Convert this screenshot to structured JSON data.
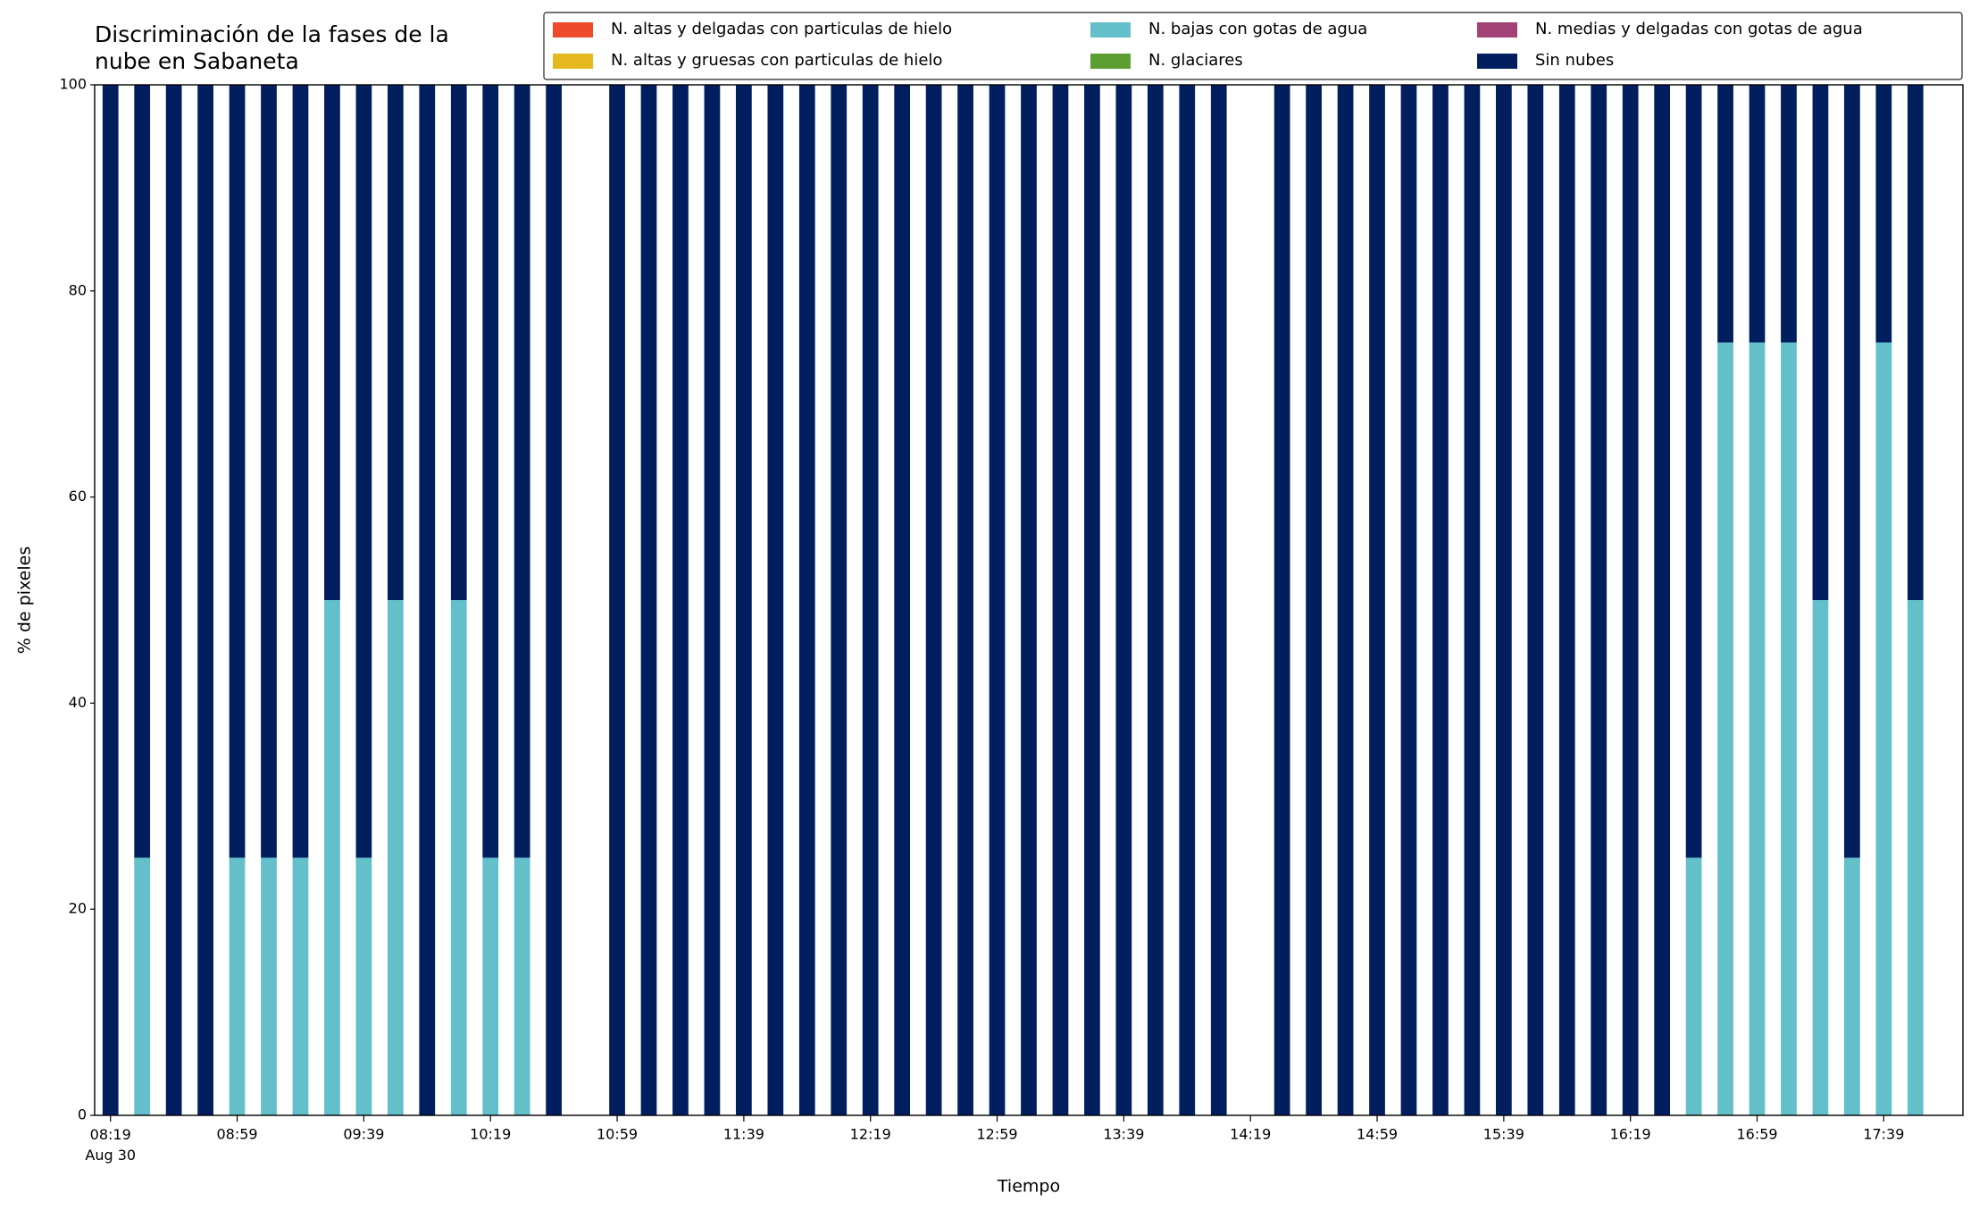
{
  "chart_data": {
    "type": "stacked_bar",
    "title": "Discriminación de la fases de la\nnube en Sabaneta",
    "xlabel": "Tiempo",
    "ylabel": "% de pixeles",
    "x": [
      "08:19",
      "08:29",
      "08:39",
      "08:49",
      "08:59",
      "09:09",
      "09:19",
      "09:29",
      "09:39",
      "09:49",
      "09:59",
      "10:09",
      "10:19",
      "10:29",
      "10:39",
      "10:59",
      "11:09",
      "11:19",
      "11:29",
      "11:39",
      "11:49",
      "11:59",
      "12:09",
      "12:19",
      "12:29",
      "12:39",
      "12:49",
      "12:59",
      "13:09",
      "13:19",
      "13:29",
      "13:39",
      "13:49",
      "13:59",
      "14:09",
      "14:29",
      "14:39",
      "14:49",
      "14:59",
      "15:09",
      "15:19",
      "15:29",
      "15:39",
      "15:49",
      "15:59",
      "16:09",
      "16:19",
      "16:29",
      "16:39",
      "16:49",
      "16:59",
      "17:09",
      "17:19",
      "17:29",
      "17:39",
      "17:49"
    ],
    "series": [
      {
        "name": "N. altas y delgadas con particulas de hielo",
        "color": "#ee4b2b",
        "values": [
          0,
          0,
          0,
          0,
          0,
          0,
          0,
          0,
          0,
          0,
          0,
          0,
          0,
          0,
          0,
          0,
          0,
          0,
          0,
          0,
          0,
          0,
          0,
          0,
          0,
          0,
          0,
          0,
          0,
          0,
          0,
          0,
          0,
          0,
          0,
          0,
          0,
          0,
          0,
          0,
          0,
          0,
          0,
          0,
          0,
          0,
          0,
          0,
          0,
          0,
          0,
          0,
          0,
          0,
          0,
          0
        ]
      },
      {
        "name": "N. altas y gruesas con particulas de hielo",
        "color": "#e5b81f",
        "values": [
          0,
          0,
          0,
          0,
          0,
          0,
          0,
          0,
          0,
          0,
          0,
          0,
          0,
          0,
          0,
          0,
          0,
          0,
          0,
          0,
          0,
          0,
          0,
          0,
          0,
          0,
          0,
          0,
          0,
          0,
          0,
          0,
          0,
          0,
          0,
          0,
          0,
          0,
          0,
          0,
          0,
          0,
          0,
          0,
          0,
          0,
          0,
          0,
          0,
          0,
          0,
          0,
          0,
          0,
          0,
          0
        ]
      },
      {
        "name": "N. bajas con gotas de agua",
        "color": "#63bfca",
        "values": [
          0,
          25,
          0,
          0,
          25,
          25,
          25,
          50,
          25,
          50,
          0,
          50,
          25,
          25,
          0,
          0,
          0,
          0,
          0,
          0,
          0,
          0,
          0,
          0,
          0,
          0,
          0,
          0,
          0,
          0,
          0,
          0,
          0,
          0,
          0,
          0,
          0,
          0,
          0,
          0,
          0,
          0,
          0,
          0,
          0,
          0,
          0,
          0,
          25,
          75,
          75,
          75,
          50,
          25,
          75,
          50
        ]
      },
      {
        "name": "N. glaciares",
        "color": "#5d9e32",
        "values": [
          0,
          0,
          0,
          0,
          0,
          0,
          0,
          0,
          0,
          0,
          0,
          0,
          0,
          0,
          0,
          0,
          0,
          0,
          0,
          0,
          0,
          0,
          0,
          0,
          0,
          0,
          0,
          0,
          0,
          0,
          0,
          0,
          0,
          0,
          0,
          0,
          0,
          0,
          0,
          0,
          0,
          0,
          0,
          0,
          0,
          0,
          0,
          0,
          0,
          0,
          0,
          0,
          0,
          0,
          0,
          0
        ]
      },
      {
        "name": "N. medias y delgadas con gotas de agua",
        "color": "#a24277",
        "values": [
          0,
          0,
          0,
          0,
          0,
          0,
          0,
          0,
          0,
          0,
          0,
          0,
          0,
          0,
          0,
          0,
          0,
          0,
          0,
          0,
          0,
          0,
          0,
          0,
          0,
          0,
          0,
          0,
          0,
          0,
          0,
          0,
          0,
          0,
          0,
          0,
          0,
          0,
          0,
          0,
          0,
          0,
          0,
          0,
          0,
          0,
          0,
          0,
          0,
          0,
          0,
          0,
          0,
          0,
          0,
          0
        ]
      },
      {
        "name": "Sin nubes",
        "color": "#011f5e",
        "values": [
          100,
          75,
          100,
          100,
          75,
          75,
          75,
          50,
          75,
          50,
          100,
          50,
          75,
          75,
          100,
          100,
          100,
          100,
          100,
          100,
          100,
          100,
          100,
          100,
          100,
          100,
          100,
          100,
          100,
          100,
          100,
          100,
          100,
          100,
          100,
          100,
          100,
          100,
          100,
          100,
          100,
          100,
          100,
          100,
          100,
          100,
          100,
          100,
          75,
          25,
          25,
          25,
          50,
          75,
          25,
          50
        ]
      }
    ],
    "xlim": [
      "08:14",
      "18:04"
    ],
    "xticks": [
      {
        "value": "08:19",
        "label": "08:19\nAug 30"
      },
      "08:59",
      "09:39",
      "10:19",
      "10:59",
      "11:39",
      "12:19",
      "12:59",
      "13:39",
      "14:19",
      "14:59",
      "15:39",
      "16:19",
      "16:59",
      "17:39"
    ],
    "ylim": [
      0,
      100
    ],
    "yticks": [
      0,
      20,
      40,
      60,
      80,
      100
    ],
    "legend": "upper right",
    "legend_columns": 3
  }
}
